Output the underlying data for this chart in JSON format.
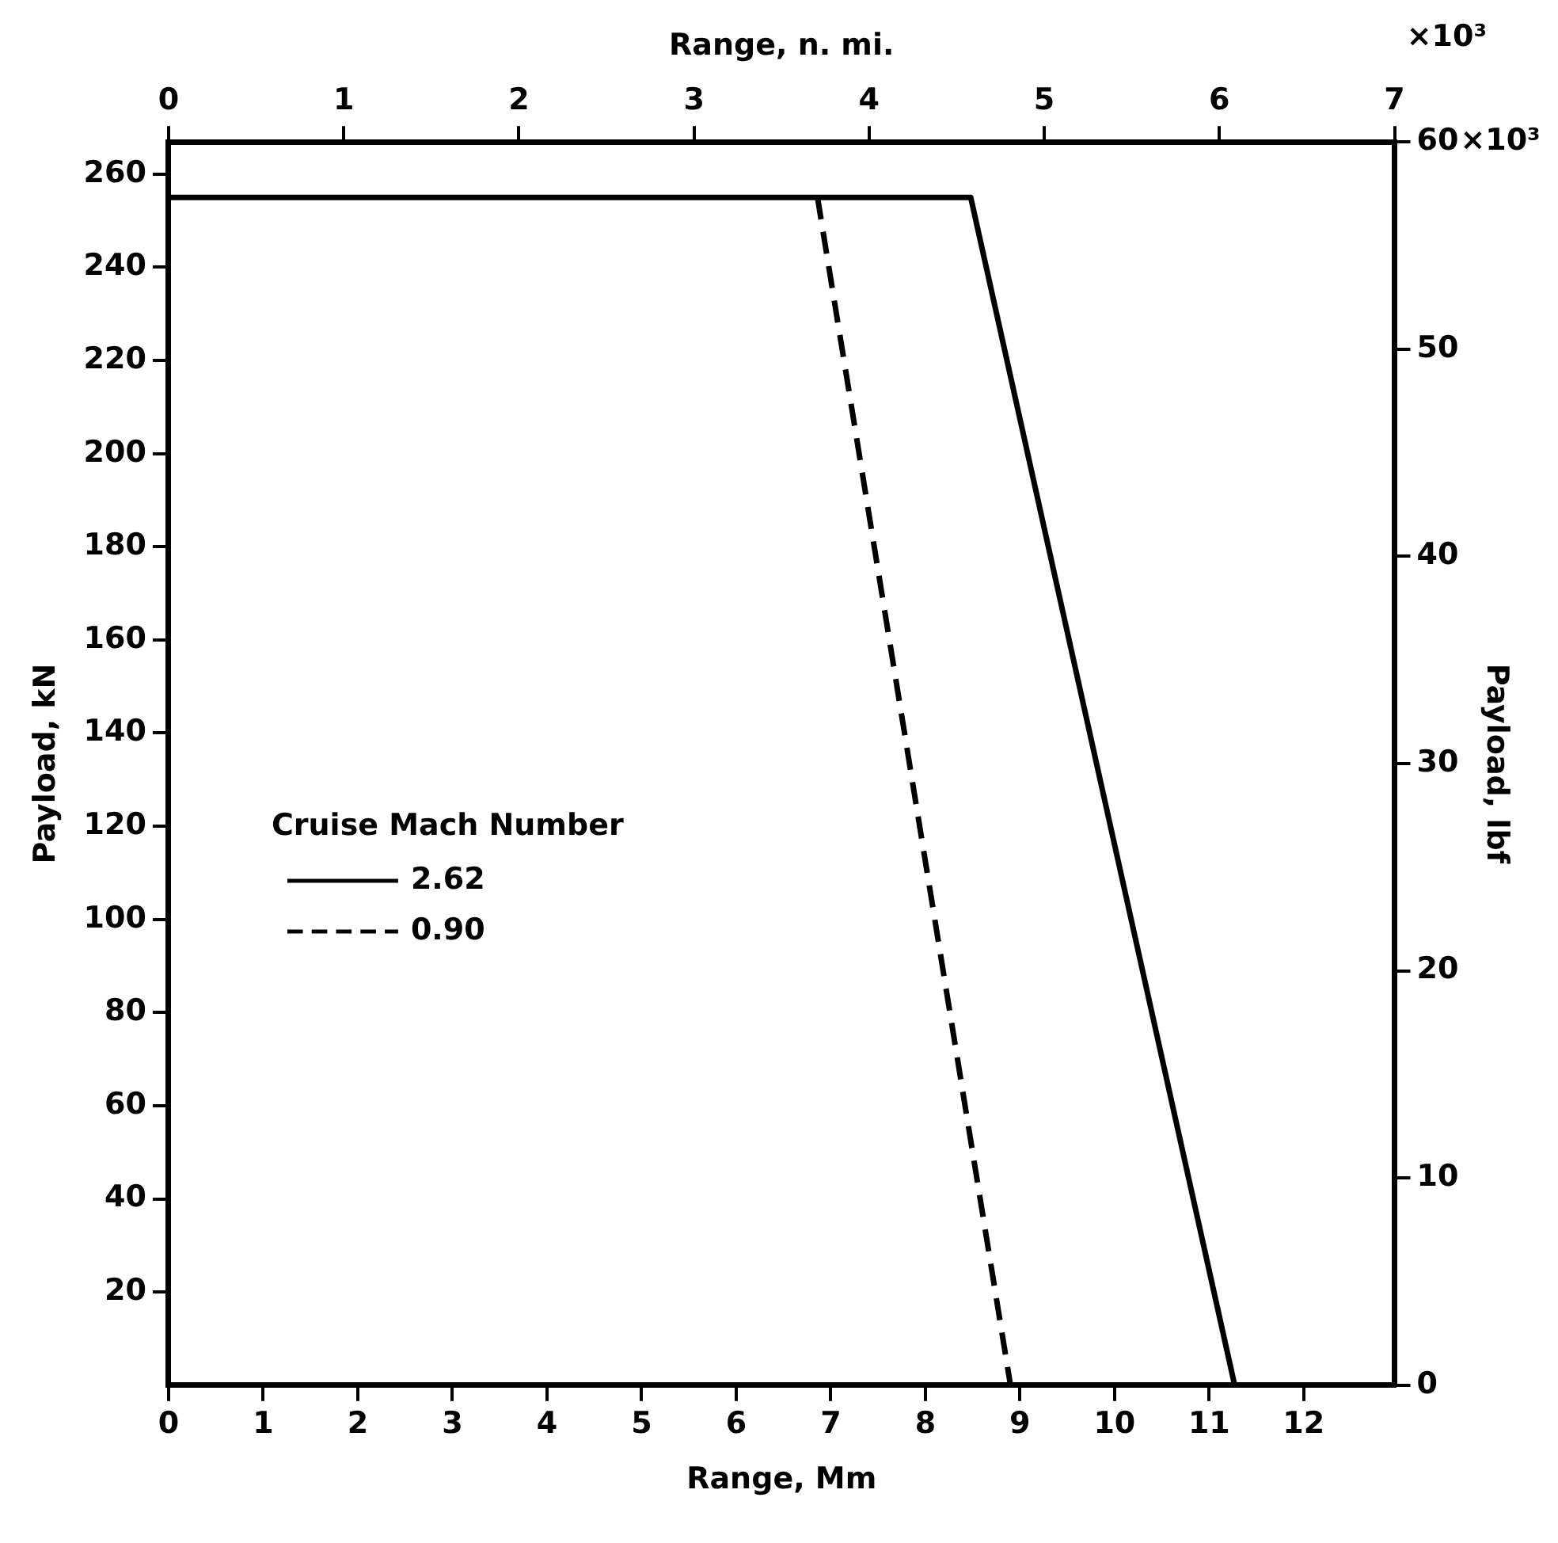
{
  "chart_data": {
    "type": "line",
    "xlabel": "Range, Mm",
    "x2label": "Range, n. mi.",
    "ylabel": "Payload, kN",
    "y2label": "Payload, lbf",
    "legend_title": "Cruise Mach Number",
    "legend": "left",
    "series": [
      {
        "name": "2.62",
        "color": "#000000",
        "line_style": "solid",
        "x": [
          0,
          8.48,
          11.27
        ],
        "values": [
          255,
          255,
          0
        ]
      },
      {
        "name": "0.90",
        "color": "#000000",
        "line_style": "dashed",
        "x": [
          6.86,
          8.9
        ],
        "values": [
          255,
          0
        ]
      }
    ],
    "xlim": [
      0,
      12.96
    ],
    "xticks": [
      0,
      1,
      2,
      3,
      4,
      5,
      6,
      7,
      8,
      9,
      10,
      11,
      12
    ],
    "x2lim": [
      0,
      7
    ],
    "x2ticks": [
      0,
      1,
      2,
      3,
      4,
      5,
      6,
      7
    ],
    "ylim": [
      0,
      266.9
    ],
    "yticks": [
      20,
      40,
      60,
      80,
      100,
      120,
      140,
      160,
      180,
      200,
      220,
      240,
      260
    ],
    "y2lim": [
      0,
      60
    ],
    "y2ticks": [
      0,
      10,
      20,
      30,
      40,
      50,
      60
    ],
    "annotations": [
      "×10³",
      "×10³"
    ],
    "grid": false,
    "marker": "none"
  }
}
